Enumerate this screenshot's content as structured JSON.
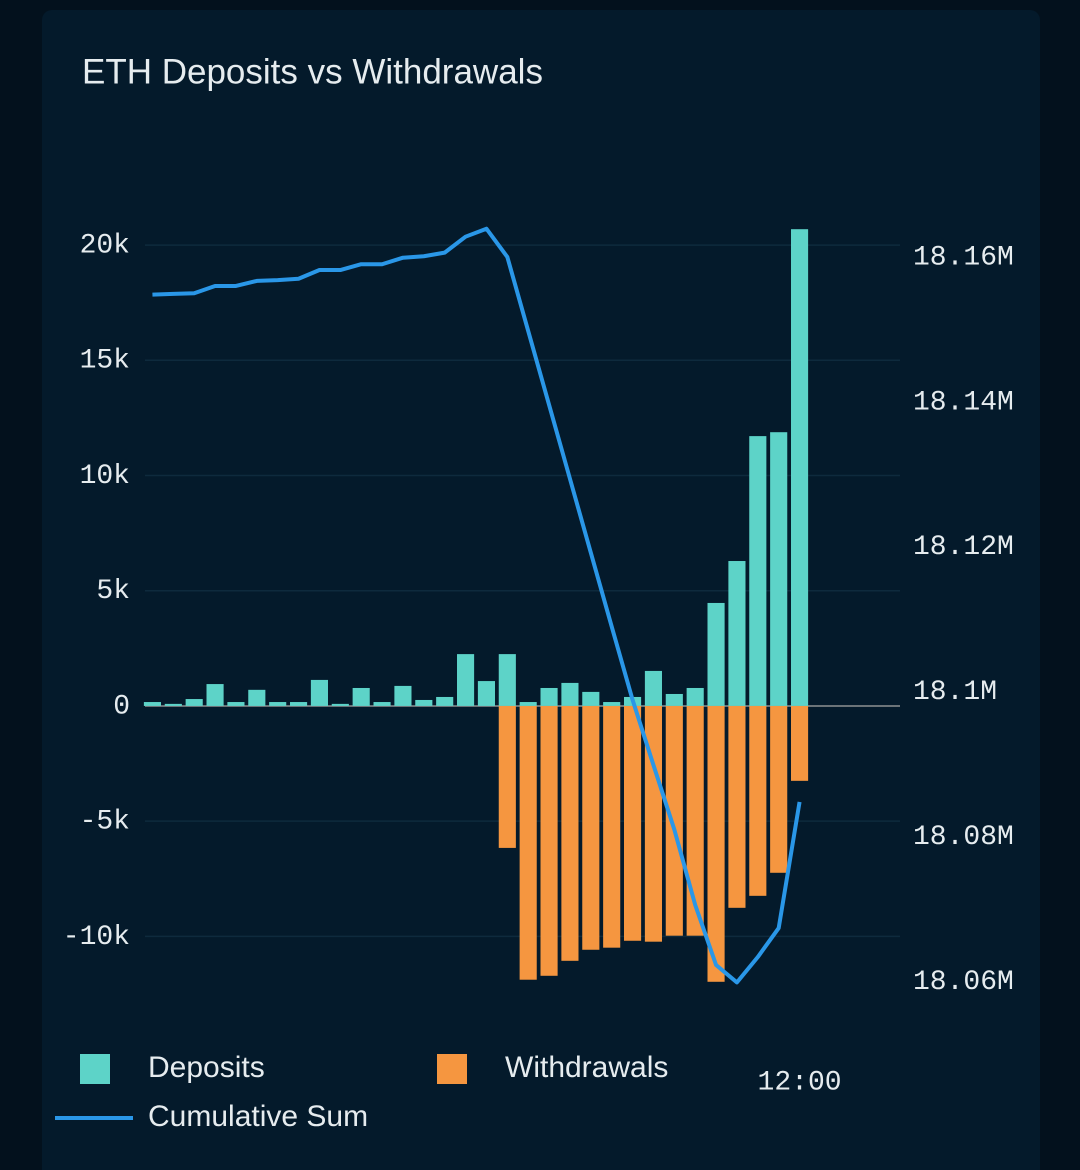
{
  "chart_data": {
    "type": "bar",
    "title": "ETH Deposits vs Withdrawals",
    "categories": [
      null,
      null,
      null,
      null,
      null,
      null,
      null,
      null,
      null,
      null,
      null,
      null,
      null,
      null,
      null,
      null,
      null,
      null,
      null,
      null,
      null,
      null,
      null,
      null,
      null,
      null,
      null,
      null,
      null,
      null,
      null,
      "12:00"
    ],
    "series": [
      {
        "name": "Deposits",
        "color": "#5dd3c8",
        "values": [
          170,
          90,
          300,
          950,
          170,
          700,
          170,
          170,
          1130,
          90,
          780,
          170,
          870,
          260,
          390,
          2250,
          1080,
          2250,
          170,
          780,
          1000,
          610,
          170,
          390,
          1520,
          520,
          780,
          4470,
          6290,
          11710,
          11880,
          20690
        ]
      },
      {
        "name": "Withdrawals",
        "color": "#f59640",
        "values": [
          0,
          0,
          0,
          0,
          0,
          0,
          0,
          0,
          0,
          0,
          0,
          0,
          0,
          0,
          0,
          0,
          0,
          -6160,
          -11880,
          -11710,
          -11060,
          -10580,
          -10490,
          -10190,
          -10230,
          -9970,
          -9970,
          -11970,
          -8760,
          -8240,
          -7240,
          -3250
        ]
      },
      {
        "name": "Cumulative Sum",
        "color": "#2a97e8",
        "axis": "y2",
        "values": [
          18154800,
          18154900,
          18155000,
          18156000,
          18156000,
          18156700,
          18156800,
          18157000,
          18158200,
          18158200,
          18159000,
          18159000,
          18159900,
          18160100,
          18160600,
          18162800,
          18163900,
          18160000,
          18149800,
          18139600,
          18129400,
          18119200,
          18109000,
          18098900,
          18089900,
          18081000,
          18070600,
          18062300,
          18059900,
          18063400,
          18067400,
          18084800
        ]
      }
    ],
    "ylim": [
      -12500,
      22000
    ],
    "yticks": [
      {
        "value": -10000,
        "label": "-10k"
      },
      {
        "value": -5000,
        "label": "-5k"
      },
      0,
      {
        "value": 5000,
        "label": "5k"
      },
      {
        "value": 10000,
        "label": "10k"
      },
      {
        "value": 15000,
        "label": "15k"
      },
      {
        "value": 20000,
        "label": "20k"
      }
    ],
    "y2lim": [
      18058300,
      18168000
    ],
    "y2ticks": [
      {
        "value": 18060000,
        "label": "18.06M"
      },
      {
        "value": 18080000,
        "label": "18.08M"
      },
      {
        "value": 18100000,
        "label": "18.1M"
      },
      {
        "value": 18120000,
        "label": "18.12M"
      },
      {
        "value": 18140000,
        "label": "18.14M"
      },
      {
        "value": 18160000,
        "label": "18.16M"
      }
    ],
    "grid": true
  }
}
